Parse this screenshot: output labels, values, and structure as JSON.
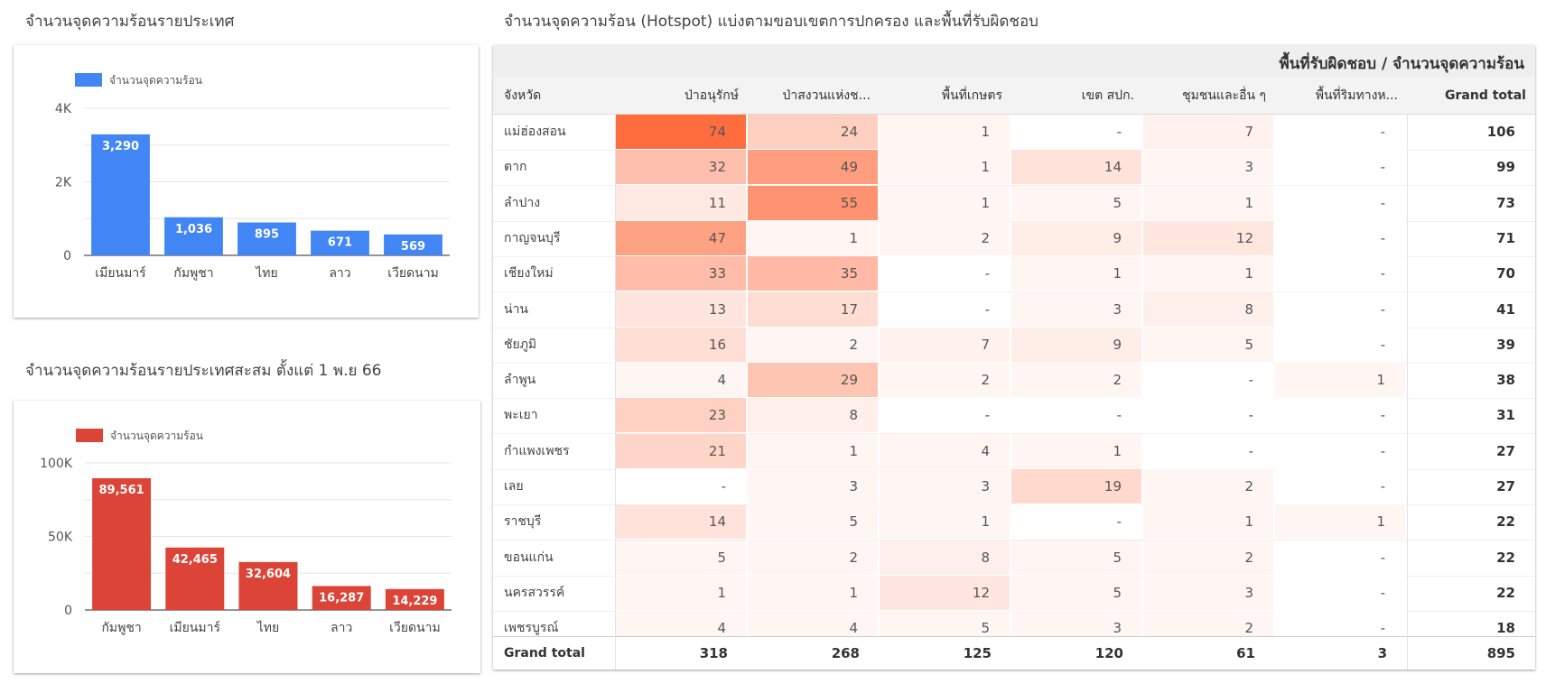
{
  "titles": {
    "chart1": "จำนวนจุดความร้อนรายประเทศ",
    "chart2": "จำนวนจุดความร้อนรายประเทศสะสม ตั้งแต่ 1 พ.ย 66",
    "table": "จำนวนจุดความร้อน (Hotspot) แบ่งตามขอบเขตการปกครอง และพื้นที่รับผิดชอบ"
  },
  "chart_data": [
    {
      "type": "bar",
      "title": "จำนวนจุดความร้อนรายประเทศ",
      "categories": [
        "เมียนมาร์",
        "กัมพูชา",
        "ไทย",
        "ลาว",
        "เวียดนาม"
      ],
      "series": [
        {
          "name": "จำนวนจุดความร้อน",
          "values": [
            3290,
            1036,
            895,
            671,
            569
          ]
        }
      ],
      "value_labels": [
        "3,290",
        "1,036",
        "895",
        "671",
        "569"
      ],
      "yticks": [
        0,
        2000,
        4000
      ],
      "ytick_labels": [
        "0",
        "2K",
        "4K"
      ],
      "ylim": [
        0,
        4000
      ],
      "color": "#4285f4",
      "legend": "top-left",
      "grid": true
    },
    {
      "type": "bar",
      "title": "จำนวนจุดความร้อนรายประเทศสะสม ตั้งแต่ 1 พ.ย 66",
      "categories": [
        "กัมพูชา",
        "เมียนมาร์",
        "ไทย",
        "ลาว",
        "เวียดนาม"
      ],
      "series": [
        {
          "name": "จำนวนจุดความร้อน",
          "values": [
            89561,
            42465,
            32604,
            16287,
            14229
          ]
        }
      ],
      "value_labels": [
        "89,561",
        "42,465",
        "32,604",
        "16,287",
        "14,229"
      ],
      "yticks": [
        0,
        50000,
        100000
      ],
      "ytick_labels": [
        "0",
        "50K",
        "100K"
      ],
      "ylim": [
        0,
        100000
      ],
      "color": "#db4437",
      "legend": "top-left",
      "grid": true
    },
    {
      "type": "table",
      "title": "จำนวนจุดความร้อน (Hotspot) แบ่งตามขอบเขตการปกครอง และพื้นที่รับผิดชอบ",
      "group_header": "พื้นที่รับผิดชอบ / จำนวนจุดความร้อน",
      "columns": [
        "จังหวัด",
        "ป่าอนุรักษ์",
        "ป่าสงวนแห่งช...",
        "พื้นที่เกษตร",
        "เขต สปก.",
        "ชุมชนและอื่น ๆ",
        "พื้นที่ริมทางห...",
        "Grand total"
      ],
      "rows": [
        [
          "แม่ฮ่องสอน",
          74,
          24,
          1,
          null,
          7,
          null,
          106
        ],
        [
          "ตาก",
          32,
          49,
          1,
          14,
          3,
          null,
          99
        ],
        [
          "ลำปาง",
          11,
          55,
          1,
          5,
          1,
          null,
          73
        ],
        [
          "กาญจนบุรี",
          47,
          1,
          2,
          9,
          12,
          null,
          71
        ],
        [
          "เชียงใหม่",
          33,
          35,
          null,
          1,
          1,
          null,
          70
        ],
        [
          "น่าน",
          13,
          17,
          null,
          3,
          8,
          null,
          41
        ],
        [
          "ชัยภูมิ",
          16,
          2,
          7,
          9,
          5,
          null,
          39
        ],
        [
          "ลำพูน",
          4,
          29,
          2,
          2,
          null,
          1,
          38
        ],
        [
          "พะเยา",
          23,
          8,
          null,
          null,
          null,
          null,
          31
        ],
        [
          "กำแพงเพชร",
          21,
          1,
          4,
          1,
          null,
          null,
          27
        ],
        [
          "เลย",
          null,
          3,
          3,
          19,
          2,
          null,
          27
        ],
        [
          "ราชบุรี",
          14,
          5,
          1,
          null,
          1,
          1,
          22
        ],
        [
          "ขอนแก่น",
          5,
          2,
          8,
          5,
          2,
          null,
          22
        ],
        [
          "นครสวรรค์",
          1,
          1,
          12,
          5,
          3,
          null,
          22
        ],
        [
          "เพชรบูรณ์",
          4,
          4,
          5,
          3,
          2,
          null,
          18
        ]
      ],
      "grand_total_label": "Grand total",
      "grand_total": [
        318,
        268,
        125,
        120,
        61,
        3,
        895
      ],
      "empty_symbol": "-",
      "heat_color": "#ff5a28"
    }
  ]
}
